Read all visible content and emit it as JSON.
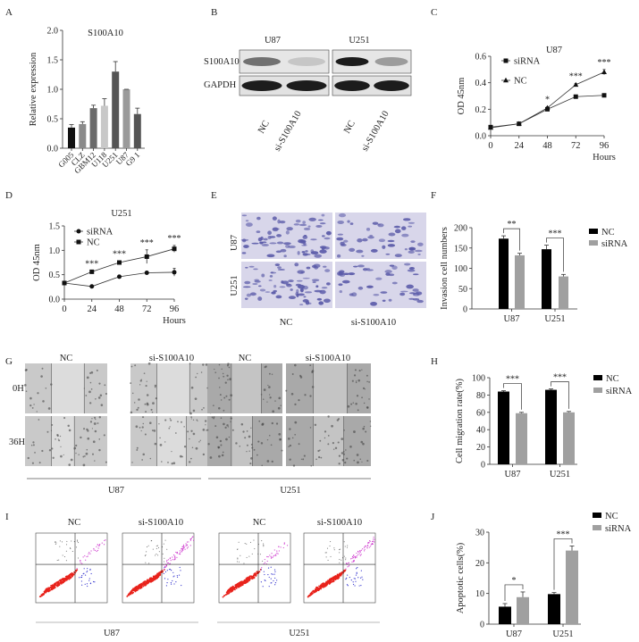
{
  "panel_labels": [
    "A",
    "B",
    "C",
    "D",
    "E",
    "F",
    "G",
    "H",
    "I",
    "J"
  ],
  "blot": {
    "cell_lines": [
      "U87",
      "U251"
    ],
    "rows": [
      "S100A10",
      "GAPDH"
    ],
    "lanes": [
      "NC",
      "si-S100A10",
      "NC",
      "si-S100A10"
    ]
  },
  "invasion_images": {
    "rows": [
      "U87",
      "U251"
    ],
    "cols": [
      "NC",
      "si-S100A10"
    ]
  },
  "migration_images": {
    "cols": [
      "NC",
      "si-S100A10",
      "NC",
      "si-S100A10"
    ],
    "rows": [
      "0H",
      "36H"
    ],
    "groups": [
      "U87",
      "U251"
    ]
  },
  "flow": {
    "cols": [
      "NC",
      "si-S100A10",
      "NC",
      "si-S100A10"
    ],
    "groups": [
      "U87",
      "U251"
    ]
  },
  "colors": {
    "nc": "#000000",
    "sirna": "#a0a0a0",
    "flow_live": "#e8231c",
    "flow_late": "#d040d0",
    "flow_early": "#3a3ad0",
    "stain": "#5a5aa8"
  },
  "chart_data": [
    {
      "id": "A",
      "type": "bar",
      "title": "S100A10",
      "xlabel": "",
      "ylabel": "Relative  expression",
      "ylim": [
        0,
        2.0
      ],
      "yticks": [
        "0.0",
        "0.5",
        "1.0",
        "1.5",
        "2.0"
      ],
      "categories": [
        "G005",
        "CLZ",
        "GBM12",
        "U118",
        "U251",
        "U87",
        "G9 1"
      ],
      "values": [
        0.35,
        0.41,
        0.68,
        0.72,
        1.3,
        1.0,
        0.58
      ],
      "errors": [
        0.05,
        0.04,
        0.05,
        0.12,
        0.17,
        0.0,
        0.1
      ],
      "bar_colors": [
        "#111111",
        "#8a8a8a",
        "#6a6a6a",
        "#c8c8c8",
        "#555555",
        "#9a9a9a",
        "#555555"
      ]
    },
    {
      "id": "C",
      "type": "line",
      "title": "U87",
      "xlabel": "Hours",
      "ylabel": "OD 45nm",
      "ylim": [
        0,
        0.6
      ],
      "yticks": [
        "0.0",
        "0.2",
        "0.4",
        "0.6"
      ],
      "x": [
        0,
        24,
        48,
        72,
        96
      ],
      "xticks": [
        "0",
        "24",
        "48",
        "72",
        "96"
      ],
      "series": [
        {
          "name": "siRNA",
          "marker": "square",
          "values": [
            0.065,
            0.09,
            0.2,
            0.295,
            0.305
          ],
          "errors": [
            0.005,
            0.005,
            0.008,
            0.006,
            0.008
          ]
        },
        {
          "name": "NC",
          "marker": "triangle",
          "values": [
            0.06,
            0.09,
            0.21,
            0.385,
            0.48
          ],
          "errors": [
            0.005,
            0.005,
            0.008,
            0.01,
            0.02
          ]
        }
      ],
      "significance": [
        "",
        "",
        "*",
        "***",
        "***"
      ],
      "legend": "top-left"
    },
    {
      "id": "D",
      "type": "line",
      "title": "U251",
      "xlabel": "Hours",
      "ylabel": "OD 45nm",
      "ylim": [
        0,
        1.5
      ],
      "yticks": [
        "0.0",
        "0.5",
        "1.0",
        "1.5"
      ],
      "x": [
        0,
        24,
        48,
        72,
        96
      ],
      "xticks": [
        "0",
        "24",
        "48",
        "72",
        "96"
      ],
      "series": [
        {
          "name": "siRNA",
          "marker": "circle",
          "values": [
            0.33,
            0.26,
            0.46,
            0.54,
            0.55
          ],
          "errors": [
            0.02,
            0.02,
            0.03,
            0.03,
            0.08
          ]
        },
        {
          "name": "NC",
          "marker": "square",
          "values": [
            0.33,
            0.56,
            0.75,
            0.87,
            1.03
          ],
          "errors": [
            0.02,
            0.02,
            0.03,
            0.14,
            0.07
          ]
        }
      ],
      "significance": [
        "",
        "***",
        "***",
        "***",
        "***"
      ],
      "legend": "top-left"
    },
    {
      "id": "F",
      "type": "bar",
      "title": "",
      "xlabel": "",
      "ylabel": "Invasion cell numbers",
      "ylim": [
        0,
        200
      ],
      "yticks": [
        "0",
        "50",
        "100",
        "150",
        "200"
      ],
      "categories": [
        "U87",
        "U251"
      ],
      "series": [
        {
          "name": "NC",
          "values": [
            173,
            147
          ],
          "errors": [
            7,
            10
          ]
        },
        {
          "name": "siRNA",
          "values": [
            132,
            80
          ],
          "errors": [
            5,
            5
          ]
        }
      ],
      "significance": [
        "**",
        "***"
      ],
      "legend": "right"
    },
    {
      "id": "H",
      "type": "bar",
      "title": "",
      "xlabel": "",
      "ylabel": "Cell migration rate(%)",
      "ylim": [
        0,
        100
      ],
      "yticks": [
        "0",
        "20",
        "40",
        "60",
        "80",
        "100"
      ],
      "categories": [
        "U87",
        "U251"
      ],
      "series": [
        {
          "name": "NC",
          "values": [
            84,
            86
          ],
          "errors": [
            1,
            1
          ]
        },
        {
          "name": "siRNA",
          "values": [
            59,
            60
          ],
          "errors": [
            1,
            1
          ]
        }
      ],
      "significance": [
        "***",
        "***"
      ],
      "legend": "right"
    },
    {
      "id": "J",
      "type": "bar",
      "title": "",
      "xlabel": "",
      "ylabel": "Apoptotic cells(%)",
      "ylim": [
        0,
        30
      ],
      "yticks": [
        "0",
        "10",
        "20",
        "30"
      ],
      "categories": [
        "U87",
        "U251"
      ],
      "series": [
        {
          "name": "NC",
          "values": [
            5.7,
            9.8
          ],
          "errors": [
            1.0,
            0.5
          ]
        },
        {
          "name": "siRNA",
          "values": [
            8.8,
            24.0
          ],
          "errors": [
            1.7,
            1.5
          ]
        }
      ],
      "significance": [
        "*",
        "***"
      ],
      "legend": "top-right"
    }
  ]
}
